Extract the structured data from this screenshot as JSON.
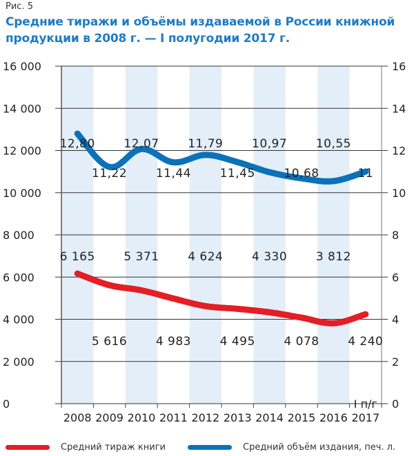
{
  "figure_label": "Рис. 5",
  "title": "Средние тиражи и объёмы издаваемой в России книжной продукции в 2008 г. — I полугодии 2017 г.",
  "colors": {
    "circulation": "#e31e24",
    "volume": "#0b72b9",
    "band": "#e3eef8",
    "title": "#1f7cc1",
    "grid": "#333333"
  },
  "chart_data": {
    "type": "line",
    "title": "Средние тиражи и объёмы издаваемой в России книжной продукции в 2008 г. — I полугодии 2017 г.",
    "categories": [
      "2008",
      "2009",
      "2010",
      "2011",
      "2012",
      "2013",
      "2014",
      "2015",
      "2016",
      "2017"
    ],
    "category_annotation": {
      "category": "2017",
      "text": "I п/г"
    },
    "y_left": {
      "min": 0,
      "max": 16000,
      "step": 2000,
      "ticks": [
        "0",
        "2 000",
        "4 000",
        "6 000",
        "8 000",
        "10 000",
        "12 000",
        "14 000",
        "16 000"
      ]
    },
    "y_right": {
      "min": 0,
      "max": 16,
      "step": 2,
      "ticks": [
        "0",
        "2",
        "4",
        "6",
        "8",
        "10",
        "12",
        "14",
        "16"
      ]
    },
    "grid": true,
    "alternating_bands": true,
    "series": [
      {
        "name": "Средний тираж книги",
        "axis": "left",
        "color": "#e31e24",
        "values": [
          6165,
          5616,
          5371,
          4983,
          4624,
          4495,
          4330,
          4078,
          3812,
          4240
        ],
        "labels": [
          "6 165",
          "5 616",
          "5 371",
          "4 983",
          "4 624",
          "4 495",
          "4 330",
          "4 078",
          "3 812",
          "4 240"
        ]
      },
      {
        "name": "Средний объём издания, печ. л.",
        "axis": "right",
        "color": "#0b72b9",
        "values": [
          12.8,
          11.22,
          12.07,
          11.44,
          11.79,
          11.45,
          10.97,
          10.68,
          10.55,
          11
        ],
        "labels": [
          "12,80",
          "11,22",
          "12,07",
          "11,44",
          "11,79",
          "11,45",
          "10,97",
          "10,68",
          "10,55",
          "11"
        ]
      }
    ],
    "legend": {
      "placement": "bottom",
      "entries": [
        "Средний тираж книги",
        "Средний объём издания, печ. л."
      ]
    }
  }
}
